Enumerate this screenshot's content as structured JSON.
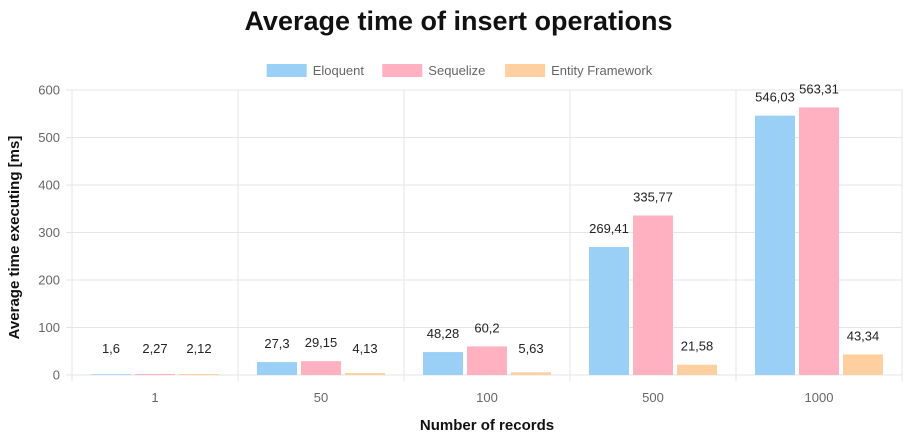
{
  "chart_data": {
    "type": "bar",
    "title": "Average time of insert operations",
    "xlabel": "Number of records",
    "ylabel": "Average time executing [ms]",
    "categories": [
      "1",
      "50",
      "100",
      "500",
      "1000"
    ],
    "ylim": [
      0,
      600
    ],
    "yticks": [
      "0",
      "100",
      "200",
      "300",
      "400",
      "500",
      "600"
    ],
    "grid": true,
    "legend_position": "top",
    "series": [
      {
        "name": "Eloquent",
        "color": "#9ad0f5",
        "values": [
          1.6,
          27.3,
          48.28,
          269.41,
          546.03
        ],
        "labels": [
          "1,6",
          "27,3",
          "48,28",
          "269,41",
          "546,03"
        ]
      },
      {
        "name": "Sequelize",
        "color": "#ffb1c1",
        "values": [
          2.27,
          29.15,
          60.2,
          335.77,
          563.31
        ],
        "labels": [
          "2,27",
          "29,15",
          "60,2",
          "335,77",
          "563,31"
        ]
      },
      {
        "name": "Entity Framework",
        "color": "#ffcf9f",
        "values": [
          2.12,
          4.13,
          5.63,
          21.58,
          43.34
        ],
        "labels": [
          "2,12",
          "4,13",
          "5,63",
          "21,58",
          "43,34"
        ]
      }
    ]
  }
}
